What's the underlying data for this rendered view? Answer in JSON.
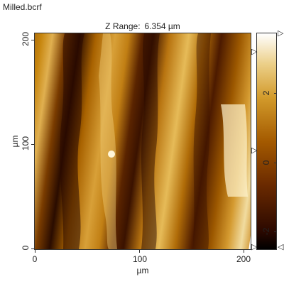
{
  "file": {
    "title": "Milled.bcrf"
  },
  "image": {
    "z_range_label": "Z Range:",
    "z_range_value": "6.354 µm",
    "x_axis": {
      "title": "µm",
      "ticks": [
        {
          "value": 0,
          "label": "0"
        },
        {
          "value": 100,
          "label": "100"
        },
        {
          "value": 200,
          "label": "200"
        }
      ],
      "range": [
        0,
        207
      ]
    },
    "y_axis": {
      "title": "µm",
      "ticks": [
        {
          "value": 0,
          "label": "0"
        },
        {
          "value": 100,
          "label": "100"
        },
        {
          "value": 200,
          "label": "200"
        }
      ],
      "range": [
        0,
        207
      ]
    }
  },
  "colorbar": {
    "ticks": [
      {
        "value": 2,
        "label": "2"
      },
      {
        "value": 0,
        "label": "0"
      },
      {
        "value": -2,
        "label": "-2"
      }
    ],
    "range": [
      -2.6,
      3.75
    ],
    "colors": [
      "#000000",
      "#2a0800",
      "#6b2a00",
      "#a45a00",
      "#d29a2a",
      "#ecd08a",
      "#ffffff"
    ],
    "markers": [
      {
        "side": "right",
        "value": 3.75,
        "glyph": "▷"
      },
      {
        "side": "left",
        "value": 3.35,
        "glyph": "▷"
      },
      {
        "side": "left",
        "value": 0.5,
        "glyph": "▷"
      },
      {
        "side": "left",
        "value": -2.55,
        "glyph": "▷"
      },
      {
        "side": "right",
        "value": -2.55,
        "glyph": "◁"
      }
    ]
  }
}
